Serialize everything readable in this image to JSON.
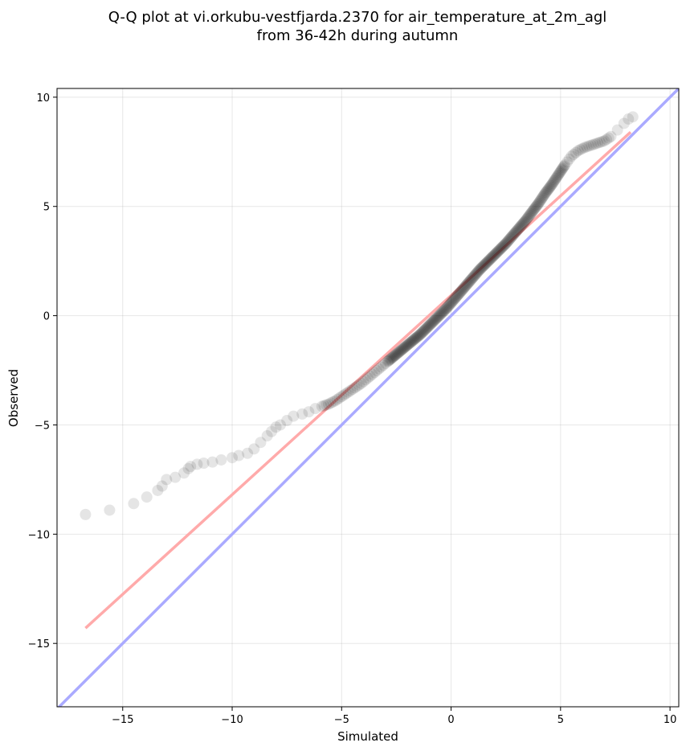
{
  "title_line1": "Q-Q plot at vi.orkubu-vestfjarda.2370 for air_temperature_at_2m_agl",
  "title_line2": "from 36-42h during autumn",
  "chart_data": {
    "type": "scatter",
    "xlabel": "Simulated",
    "ylabel": "Observed",
    "xlim": [
      -18.0,
      10.4
    ],
    "ylim": [
      -17.9,
      10.4
    ],
    "xticks": [
      -15,
      -10,
      -5,
      0,
      5,
      10
    ],
    "yticks": [
      -15,
      -10,
      -5,
      0,
      5,
      10
    ],
    "xtick_labels": [
      "−15",
      "−10",
      "−5",
      "0",
      "5",
      "10"
    ],
    "ytick_labels": [
      "−15",
      "−10",
      "−5",
      "0",
      "5",
      "10"
    ],
    "grid": true,
    "colors": {
      "points": "#000000",
      "identity_line": "#aaaaff",
      "fit_line": "#ffaaaa"
    },
    "identity_line": {
      "x": [
        -18.0,
        10.4
      ],
      "y": [
        -18.0,
        10.4
      ]
    },
    "fit_line": {
      "x": [
        -16.7,
        8.2
      ],
      "y": [
        -14.3,
        8.4
      ]
    },
    "points": {
      "x": [
        -16.7,
        -15.6,
        -14.5,
        -13.9,
        -13.4,
        -13.2,
        -13.0,
        -12.6,
        -12.2,
        -12.0,
        -11.9,
        -11.6,
        -11.3,
        -10.9,
        -10.5,
        -10.0,
        -9.7,
        -9.3,
        -9.0,
        -8.7,
        -8.4,
        -8.2,
        -8.0,
        -7.8,
        -7.5,
        -7.2,
        -6.8,
        -6.5,
        -6.2,
        -5.9,
        -5.6,
        -5.3,
        -5.0,
        -4.7,
        -4.4,
        -4.1,
        -3.8,
        -3.5,
        -3.2,
        -2.9,
        -2.6,
        -2.3,
        -2.0,
        -1.7,
        -1.4,
        -1.1,
        -0.8,
        -0.5,
        -0.2,
        0.1,
        0.4,
        0.7,
        1.0,
        1.3,
        1.6,
        1.9,
        2.2,
        2.5,
        2.8,
        3.1,
        3.4,
        3.7,
        4.0,
        4.3,
        4.6,
        4.9,
        5.2,
        5.5,
        5.8,
        6.1,
        6.4,
        6.7,
        7.0,
        7.3,
        7.6,
        7.9,
        8.1,
        8.3
      ],
      "y": [
        -9.1,
        -8.9,
        -8.6,
        -8.3,
        -8.0,
        -7.8,
        -7.5,
        -7.4,
        -7.2,
        -7.0,
        -6.9,
        -6.8,
        -6.75,
        -6.7,
        -6.6,
        -6.5,
        -6.4,
        -6.3,
        -6.1,
        -5.8,
        -5.5,
        -5.3,
        -5.1,
        -5.0,
        -4.8,
        -4.6,
        -4.5,
        -4.4,
        -4.25,
        -4.15,
        -4.05,
        -3.9,
        -3.7,
        -3.5,
        -3.3,
        -3.1,
        -2.85,
        -2.6,
        -2.35,
        -2.1,
        -1.85,
        -1.6,
        -1.35,
        -1.1,
        -0.85,
        -0.55,
        -0.25,
        0.05,
        0.35,
        0.7,
        1.05,
        1.4,
        1.75,
        2.1,
        2.4,
        2.7,
        3.0,
        3.3,
        3.65,
        4.0,
        4.35,
        4.75,
        5.15,
        5.6,
        6.0,
        6.45,
        6.9,
        7.3,
        7.55,
        7.7,
        7.8,
        7.9,
        8.0,
        8.2,
        8.5,
        8.8,
        9.0,
        9.1
      ]
    }
  }
}
